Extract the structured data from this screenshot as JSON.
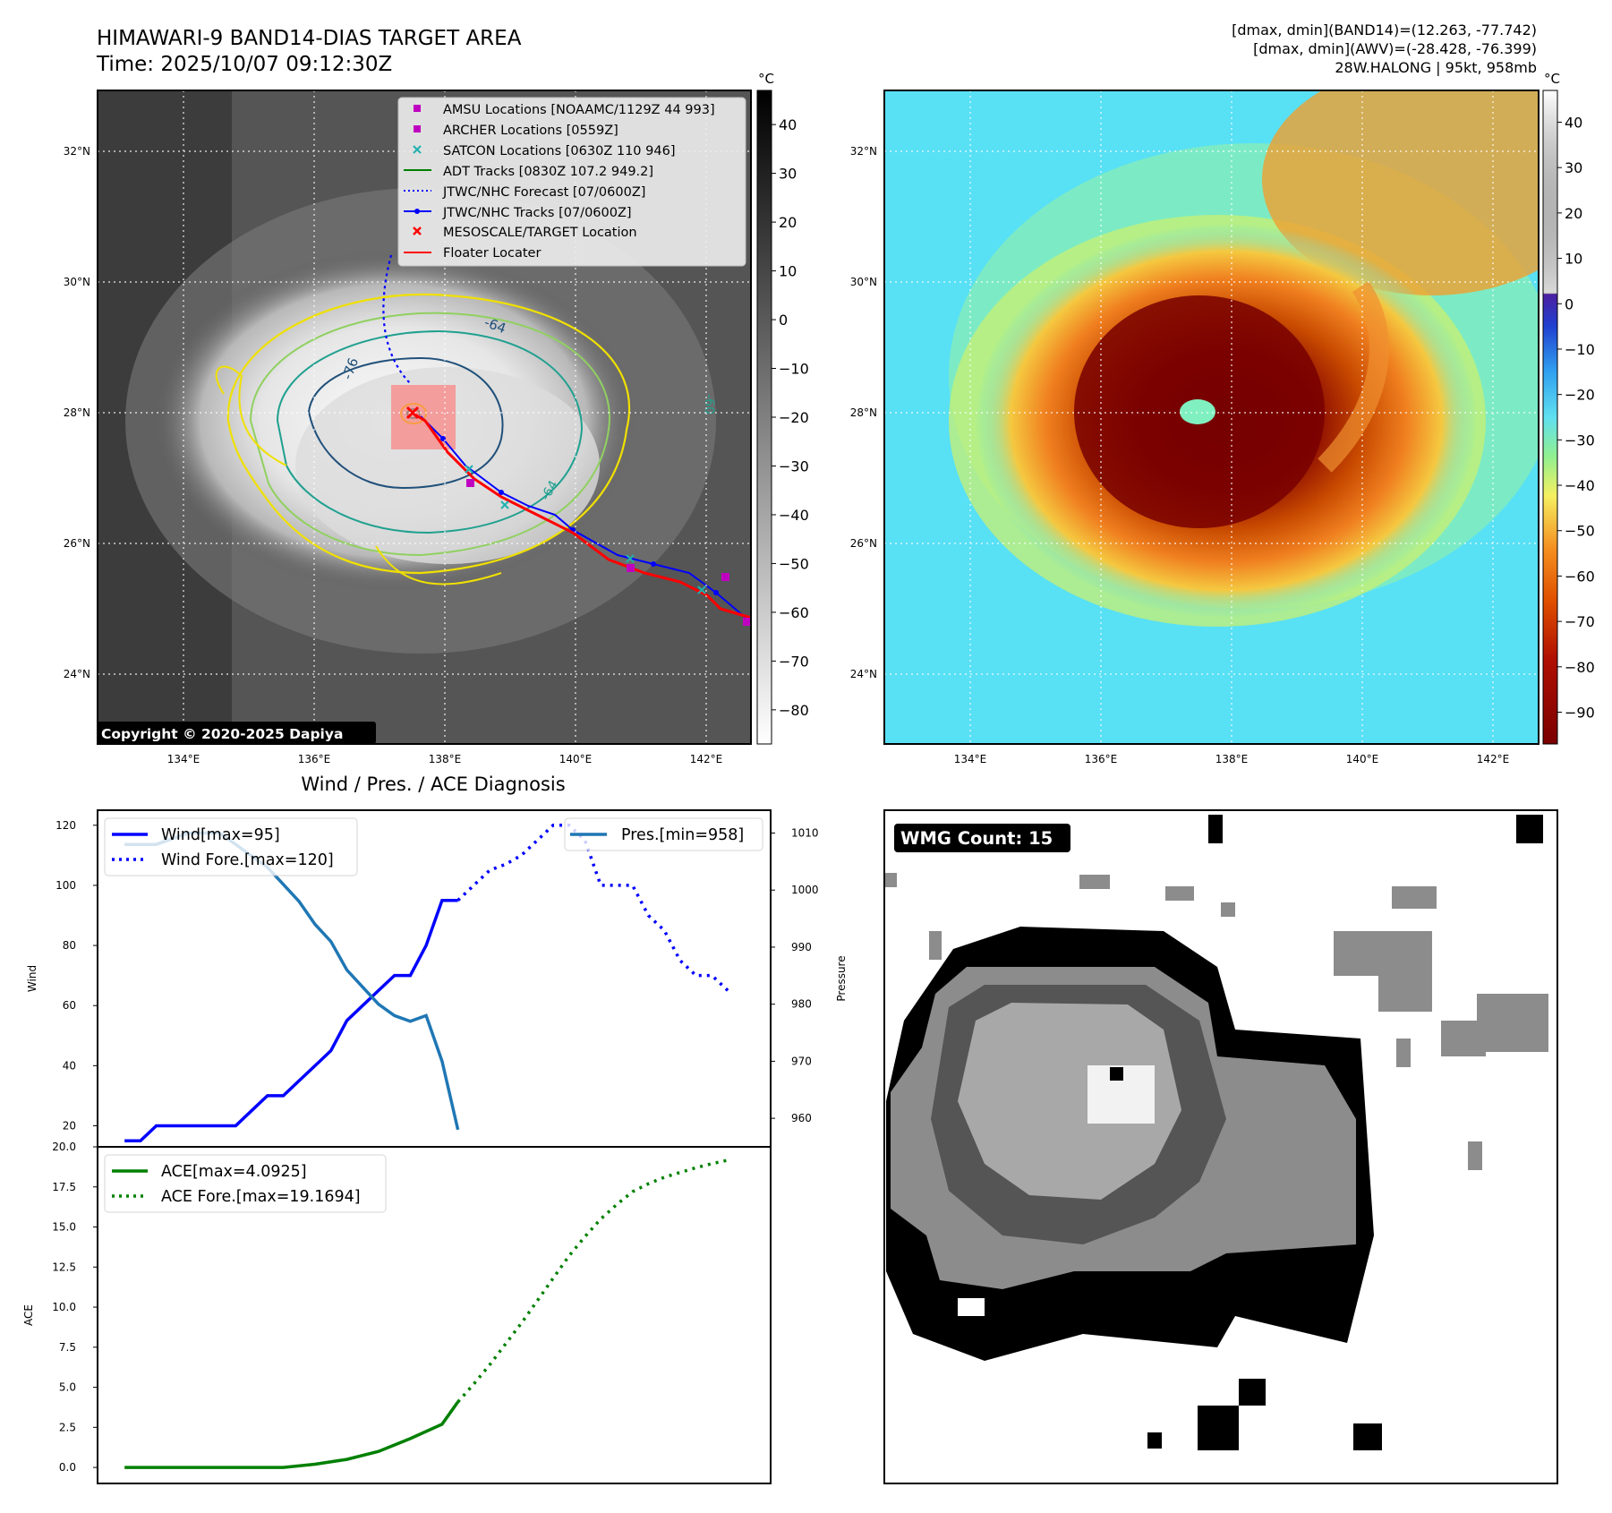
{
  "header": {
    "title_line1": "HIMAWARI-9 BAND14-DIAS TARGET AREA",
    "title_line2": "Time: 2025/10/07 09:12:30Z",
    "info_line1": "[dmax, dmin](BAND14)=(12.263, -77.742)",
    "info_line2": "[dmax, dmin](AWV)=(-28.428, -76.399)",
    "info_line3": "28W.HALONG | 95kt, 958mb"
  },
  "map": {
    "lat_labels": [
      "32°N",
      "30°N",
      "28°N",
      "26°N",
      "24°N"
    ],
    "lon_labels": [
      "134°E",
      "136°E",
      "138°E",
      "140°E",
      "142°E"
    ],
    "copyright": "Copyright © 2020-2025 Dapiya",
    "contour_labels": [
      "-64",
      "-76",
      "-64",
      "-60"
    ],
    "legend": [
      {
        "label": "AMSU Locations [NOAAMC/1129Z 44 993]",
        "color": "#c000c0",
        "marker": "square"
      },
      {
        "label": "ARCHER Locations [0559Z]",
        "color": "#c000c0",
        "marker": "square"
      },
      {
        "label": "SATCON Locations [0630Z 110 946]",
        "color": "#20b0b0",
        "marker": "x"
      },
      {
        "label": "ADT Tracks [0830Z 107.2 949.2]",
        "color": "#008000",
        "marker": "line"
      },
      {
        "label": "JTWC/NHC Forecast [07/0600Z]",
        "color": "#0000ff",
        "marker": "dotted"
      },
      {
        "label": "JTWC/NHC Tracks [07/0600Z]",
        "color": "#0000ff",
        "marker": "line-dot"
      },
      {
        "label": "MESOSCALE/TARGET Location",
        "color": "#ff0000",
        "marker": "x"
      },
      {
        "label": "Floater Locater",
        "color": "#ff0000",
        "marker": "line"
      }
    ]
  },
  "colorbar_gray": {
    "unit": "°C",
    "ticks": [
      "40",
      "30",
      "20",
      "10",
      "0",
      "−10",
      "−20",
      "−30",
      "−40",
      "−50",
      "−60",
      "−70",
      "−80"
    ]
  },
  "colorbar_color": {
    "unit": "°C",
    "ticks": [
      "40",
      "30",
      "20",
      "10",
      "0",
      "−10",
      "−20",
      "−30",
      "−40",
      "−50",
      "−60",
      "−70",
      "−80",
      "−90"
    ]
  },
  "colors": {
    "jtwc": "#0000ff",
    "pressure": "#1f77b4",
    "ace": "#008000",
    "floater": "#ff0000"
  },
  "chart_data": [
    {
      "type": "line",
      "title": "Wind / Pres. / ACE Diagnosis",
      "ylabel": "Wind",
      "y2label": "Pressure",
      "ylim": [
        13,
        125
      ],
      "y2lim": [
        955,
        1014
      ],
      "xlim": [
        -1.7,
        40.7
      ],
      "yticks": [
        "20",
        "40",
        "60",
        "80",
        "100",
        "120"
      ],
      "y2ticks": [
        "960",
        "970",
        "980",
        "990",
        "1000",
        "1010"
      ],
      "series": [
        {
          "name": "Wind[max=95]",
          "style": "solid",
          "axis": "left",
          "x": [
            0,
            1,
            2,
            3,
            4,
            5,
            6,
            7,
            8,
            9,
            10,
            11,
            12,
            13,
            14,
            15,
            16,
            17,
            18,
            19,
            20,
            21
          ],
          "y": [
            15,
            15,
            20,
            20,
            20,
            20,
            20,
            20,
            25,
            30,
            30,
            35,
            40,
            45,
            55,
            60,
            65,
            70,
            70,
            80,
            95,
            95
          ]
        },
        {
          "name": "Wind Fore.[max=120]",
          "style": "dotted",
          "axis": "left",
          "x": [
            21,
            22,
            23,
            24,
            25,
            26,
            27,
            28,
            29,
            30,
            31,
            32,
            33,
            34,
            35,
            36,
            37,
            38
          ],
          "y": [
            95,
            100,
            105,
            107,
            110,
            115,
            120,
            120,
            115,
            100,
            100,
            100,
            90,
            85,
            75,
            70,
            70,
            65
          ]
        },
        {
          "name": "Pres.[min=958]",
          "style": "solid",
          "axis": "right",
          "x": [
            0,
            1,
            2,
            3,
            4,
            5,
            6,
            7,
            8,
            9,
            10,
            11,
            12,
            13,
            14,
            15,
            16,
            17,
            18,
            19,
            20,
            21
          ],
          "y": [
            1008,
            1008,
            1008,
            1009,
            1010,
            1010,
            1010,
            1008,
            1006,
            1004,
            1001,
            998,
            994,
            991,
            986,
            983,
            980,
            978,
            977,
            978,
            970,
            958
          ]
        }
      ]
    },
    {
      "type": "line",
      "ylabel": "ACE",
      "ylim": [
        -1,
        20
      ],
      "xlim": [
        -1.7,
        40.7
      ],
      "yticks": [
        "0.0",
        "2.5",
        "5.0",
        "7.5",
        "10.0",
        "12.5",
        "15.0",
        "17.5",
        "20.0"
      ],
      "series": [
        {
          "name": "ACE[max=4.0925]",
          "style": "solid",
          "x": [
            0,
            2,
            4,
            6,
            8,
            10,
            12,
            14,
            16,
            18,
            20,
            21
          ],
          "y": [
            0,
            0,
            0,
            0,
            0,
            0,
            0.2,
            0.5,
            1.0,
            1.8,
            2.7,
            4.09
          ]
        },
        {
          "name": "ACE Fore.[max=19.1694]",
          "style": "dotted",
          "x": [
            21,
            22,
            23,
            24,
            25,
            26,
            27,
            28,
            29,
            30,
            31,
            32,
            33,
            34,
            35,
            36,
            37,
            38
          ],
          "y": [
            4.09,
            5.2,
            6.4,
            7.7,
            9.0,
            10.4,
            11.8,
            13.2,
            14.4,
            15.5,
            16.4,
            17.2,
            17.7,
            18.1,
            18.4,
            18.7,
            18.95,
            19.17
          ]
        }
      ]
    }
  ],
  "wmg": {
    "label": "WMG Count: 15"
  }
}
